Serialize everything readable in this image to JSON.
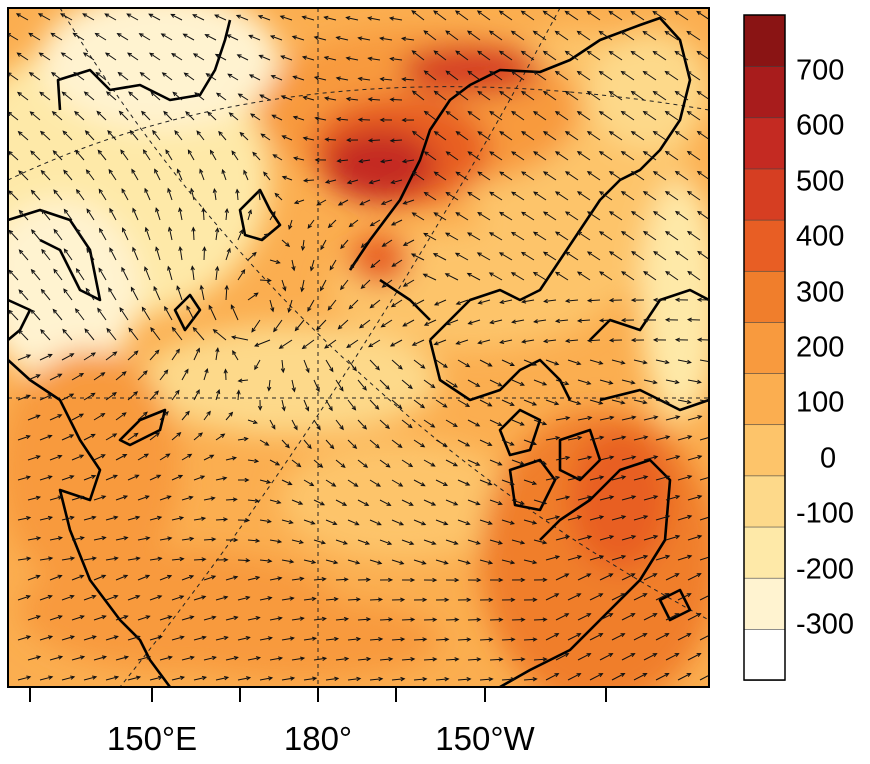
{
  "map": {
    "projection": "polar stereographic",
    "graticule_longitudes_labeled": [
      "150°E",
      "180°",
      "150°W"
    ],
    "layers": [
      "filled field contours",
      "coastlines",
      "wind vectors",
      "dashed graticule"
    ]
  },
  "x_axis": {
    "tick_labels": [
      "150°E",
      "180°",
      "150°W"
    ]
  },
  "colorbar": {
    "tick_labels": [
      "700",
      "600",
      "500",
      "400",
      "300",
      "200",
      "100",
      "0",
      "-100",
      "-200",
      "-300"
    ],
    "levels": [
      -400,
      -300,
      -200,
      -100,
      0,
      100,
      200,
      300,
      400,
      500,
      600,
      700,
      800
    ],
    "colors": [
      "#ffffff",
      "#fff3d0",
      "#fee9a8",
      "#fdd98a",
      "#fdc46a",
      "#fbae50",
      "#f89a3e",
      "#f07e2c",
      "#e85e24",
      "#d63e22",
      "#c42a22",
      "#a81c1c",
      "#8a1414"
    ]
  },
  "colors": {
    "coastline": "#000000",
    "arrows": "#111111",
    "frame": "#000000"
  }
}
